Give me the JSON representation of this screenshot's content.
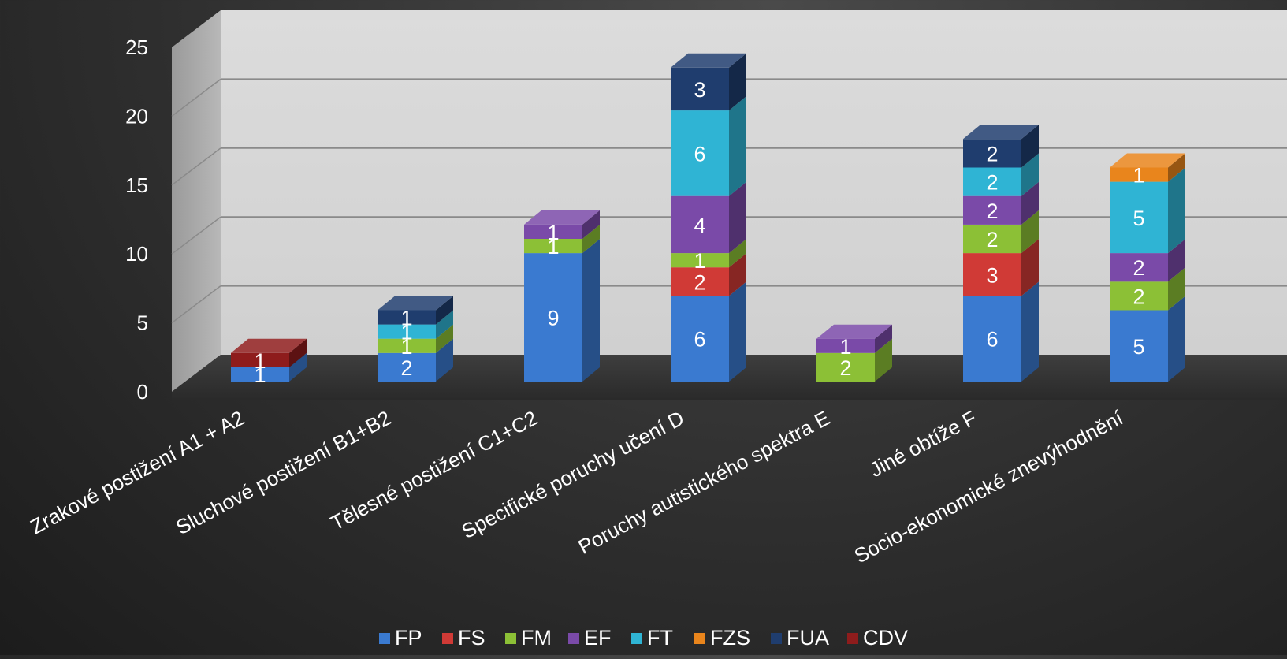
{
  "chart_data": {
    "type": "bar",
    "stacked": true,
    "three_d": true,
    "categories": [
      "Zrakové postižení A1 + A2",
      "Sluchové postižení B1+B2",
      "Tělesné postižení C1+C2",
      "Specifické poruchy učení D",
      "Poruchy autistického spektra E",
      "Jiné obtíže F",
      "Socio-ekonomické znevýhodnění"
    ],
    "series": [
      {
        "name": "FP",
        "color": "#3a7ad0",
        "values": [
          1,
          2,
          9,
          6,
          0,
          6,
          5
        ]
      },
      {
        "name": "FS",
        "color": "#d03a36",
        "values": [
          0,
          0,
          0,
          2,
          0,
          3,
          0
        ]
      },
      {
        "name": "FM",
        "color": "#8cc036",
        "values": [
          0,
          1,
          1,
          1,
          2,
          2,
          2
        ]
      },
      {
        "name": "EF",
        "color": "#7a4aa8",
        "values": [
          0,
          0,
          1,
          4,
          1,
          2,
          2
        ]
      },
      {
        "name": "FT",
        "color": "#2fb4d4",
        "values": [
          0,
          1,
          0,
          6,
          0,
          2,
          5
        ]
      },
      {
        "name": "FZS",
        "color": "#e9851c",
        "values": [
          0,
          0,
          0,
          0,
          0,
          0,
          1
        ]
      },
      {
        "name": "FUA",
        "color": "#1f3d6e",
        "values": [
          0,
          1,
          0,
          3,
          0,
          2,
          0
        ]
      },
      {
        "name": "CDV",
        "color": "#8e1c1c",
        "values": [
          1,
          0,
          0,
          0,
          0,
          0,
          0
        ]
      }
    ],
    "ylim": [
      0,
      25
    ],
    "yticks": [
      0,
      5,
      10,
      15,
      20,
      25
    ],
    "grid": true,
    "legend_position": "bottom",
    "title": "",
    "xlabel": "",
    "ylabel": ""
  }
}
